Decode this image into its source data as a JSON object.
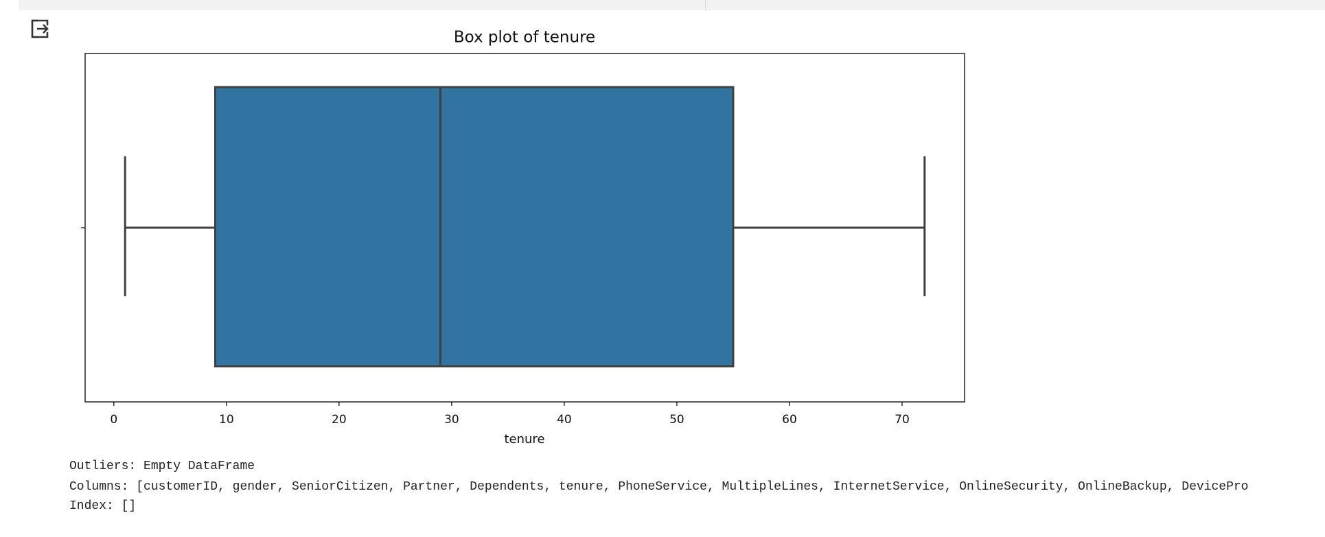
{
  "chart_data": {
    "type": "box",
    "title": "Box plot of tenure",
    "xlabel": "tenure",
    "whislo": 1,
    "q1": 9,
    "med": 29,
    "q3": 55,
    "whishi": 72,
    "color": "#3274a1",
    "xlim": [
      -2.55,
      75.55
    ],
    "xticks": [
      0,
      10,
      20,
      30,
      40,
      50,
      60,
      70
    ]
  },
  "output": {
    "lines": [
      "Outliers: Empty DataFrame",
      "Columns: [customerID, gender, SeniorCitizen, Partner, Dependents, tenure, PhoneService, MultipleLines, InternetService, OnlineSecurity, OnlineBackup, DevicePro",
      "Index: []"
    ]
  }
}
